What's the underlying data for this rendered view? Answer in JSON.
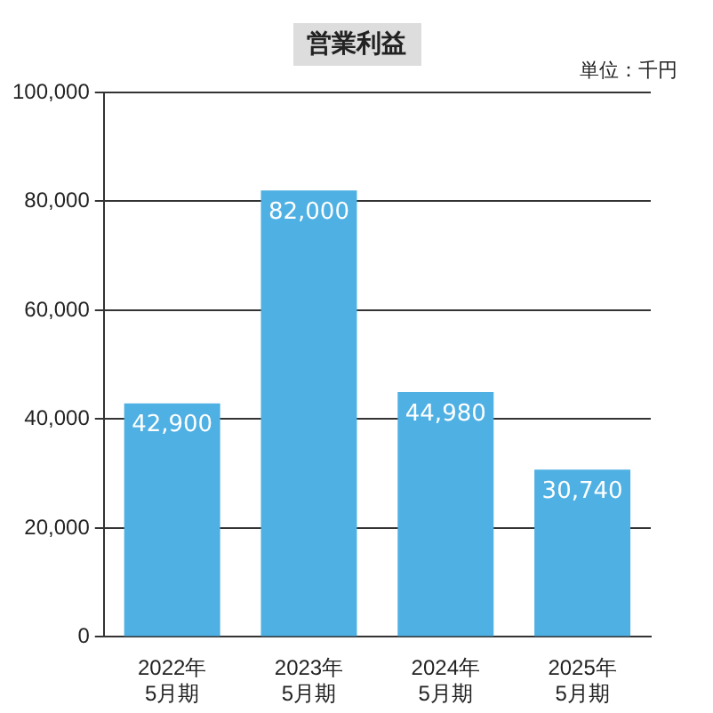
{
  "chart_data": {
    "type": "bar",
    "title": "営業利益",
    "annotations": [
      "単位：千円"
    ],
    "categories": [
      "2022年\n5月期",
      "2023年\n5月期",
      "2024年\n5月期",
      "2025年\n5月期"
    ],
    "values": [
      42900,
      82000,
      44980,
      30740
    ],
    "color": "#4fb0e3",
    "value_labels": [
      "42,900",
      "82,000",
      "44,980",
      "30,740"
    ],
    "ylim": [
      0,
      100000
    ],
    "yticks": [
      {
        "value": 0,
        "label": "0"
      },
      {
        "value": 20000,
        "label": "20,000"
      },
      {
        "value": 40000,
        "label": "40,000"
      },
      {
        "value": 60000,
        "label": "60,000"
      },
      {
        "value": 80000,
        "label": "80,000"
      },
      {
        "value": 100000,
        "label": "100,000"
      }
    ],
    "grid": "y",
    "legend": false
  }
}
